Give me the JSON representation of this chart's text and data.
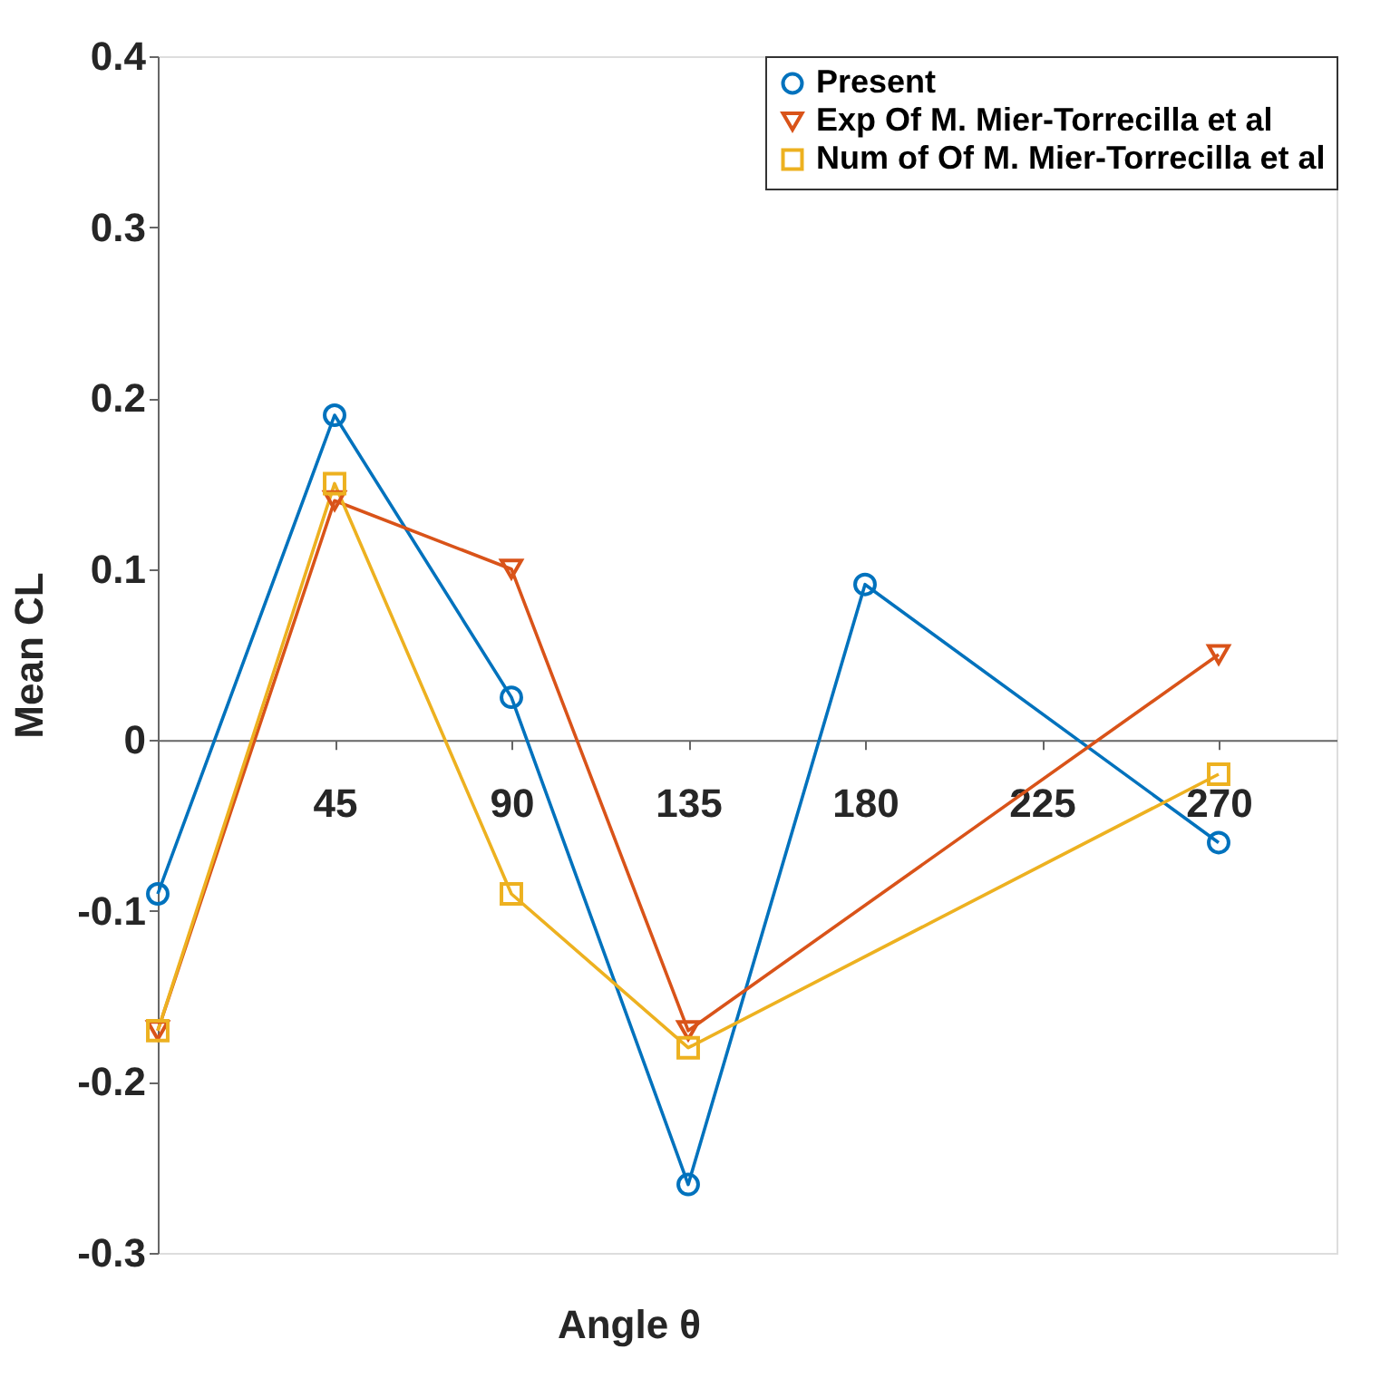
{
  "chart_data": {
    "type": "line",
    "xlabel": "Angle θ",
    "ylabel": "Mean CL",
    "x": [
      0,
      45,
      90,
      135,
      180,
      270
    ],
    "series": [
      {
        "name": "Present",
        "color": "#0072bd",
        "marker": "circle",
        "values": [
          -0.09,
          0.19,
          0.025,
          -0.26,
          0.091,
          -0.06
        ]
      },
      {
        "name": "Exp Of M. Mier-Torrecilla et al",
        "color": "#d95319",
        "marker": "triangle",
        "x": [
          0,
          45,
          90,
          135,
          270
        ],
        "values": [
          -0.17,
          0.14,
          0.1,
          -0.17,
          0.05
        ]
      },
      {
        "name": "Num of Of M. Mier-Torrecilla et al",
        "color": "#edb120",
        "marker": "square",
        "x": [
          0,
          45,
          90,
          135,
          270
        ],
        "values": [
          -0.17,
          0.15,
          -0.09,
          -0.18,
          -0.02
        ]
      }
    ],
    "xlim": [
      0,
      300
    ],
    "xticks": [
      45,
      90,
      135,
      180,
      225,
      270
    ],
    "ylim": [
      -0.3,
      0.4
    ],
    "yticks": [
      -0.3,
      -0.2,
      -0.1,
      0,
      0.1,
      0.2,
      0.3,
      0.4
    ],
    "grid": false,
    "legend": "top right",
    "line_style": "solid"
  }
}
